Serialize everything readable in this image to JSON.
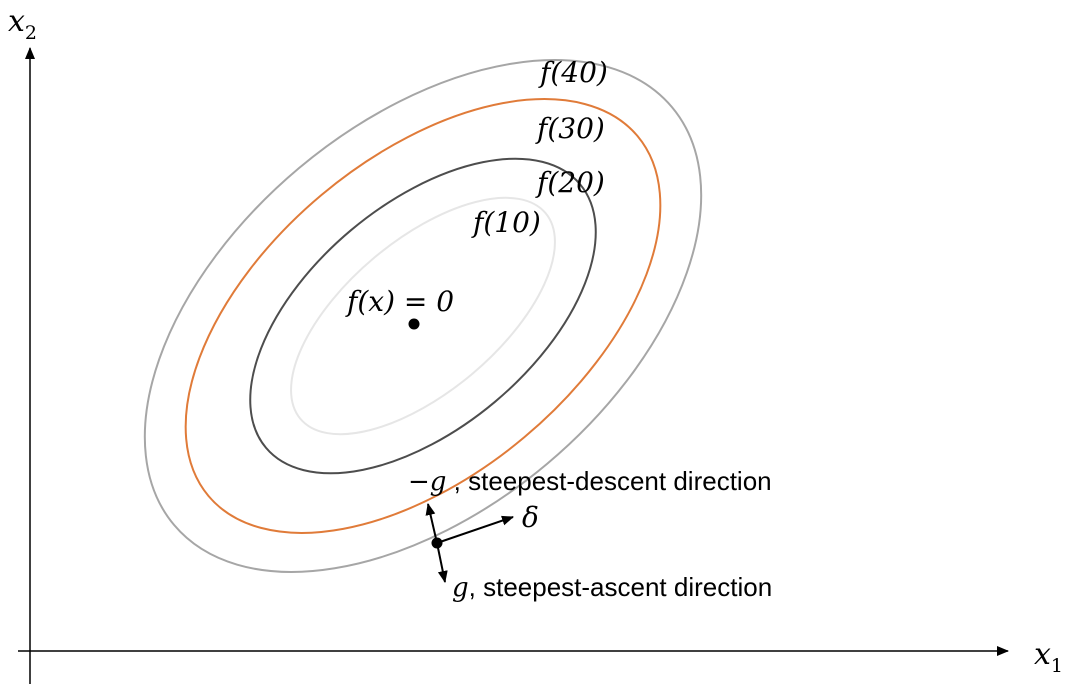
{
  "axes": {
    "x_label": "x",
    "x_subscript": "1",
    "y_label": "x",
    "y_subscript": "2"
  },
  "contours": [
    {
      "name": "contour-f10",
      "label": "f(10)",
      "color": "#e6e6e6"
    },
    {
      "name": "contour-f20",
      "label": "f(20)",
      "color": "#4d4d4d"
    },
    {
      "name": "contour-f30",
      "label": "f(30)",
      "color": "#e07b39"
    },
    {
      "name": "contour-f40",
      "label": "f(40)",
      "color": "#a6a6a6"
    }
  ],
  "minimum_label": "f(x) = 0",
  "vectors": {
    "descent": {
      "symbol": "−g",
      "text": " , steepest-descent direction"
    },
    "ascent": {
      "symbol": "g",
      "text": ", steepest-ascent direction"
    },
    "delta": {
      "symbol": "δ"
    }
  },
  "colors": {
    "axis": "#000000",
    "point": "#000000"
  }
}
